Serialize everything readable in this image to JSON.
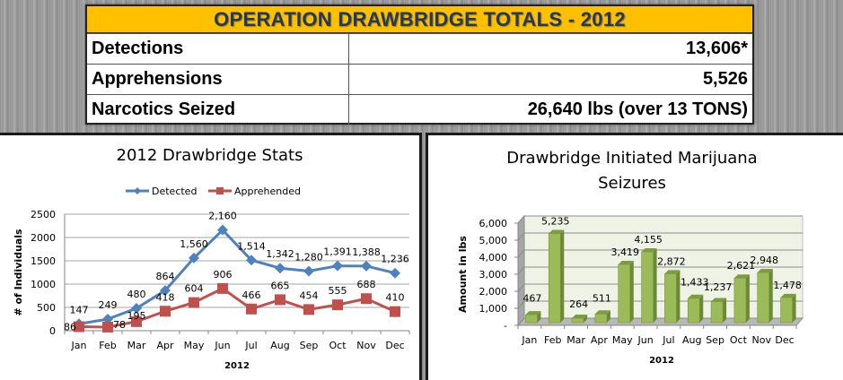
{
  "totals": {
    "title": "OPERATION DRAWBRIDGE TOTALS - 2012",
    "rows": [
      {
        "label": "Detections",
        "value": "13,606*"
      },
      {
        "label": "Apprehensions",
        "value": "5,526"
      },
      {
        "label": "Narcotics Seized",
        "value": "26,640 lbs (over 13 TONS)"
      }
    ]
  },
  "chart_data": [
    {
      "type": "line",
      "title": "2012 Drawbridge Stats",
      "xlabel": "2012",
      "ylabel": "# of Individuals",
      "categories": [
        "Jan",
        "Feb",
        "Mar",
        "Apr",
        "May",
        "Jun",
        "Jul",
        "Aug",
        "Sep",
        "Oct",
        "Nov",
        "Dec"
      ],
      "ylim": [
        0,
        2500
      ],
      "yticks": [
        "0",
        "500",
        "1000",
        "1500",
        "2000",
        "2500"
      ],
      "grid": true,
      "legend": "top",
      "series": [
        {
          "name": "Detected",
          "color": "#4f81bd",
          "marker": "diamond",
          "values": [
            147,
            249,
            480,
            864,
            1560,
            2160,
            1514,
            1342,
            1280,
            1391,
            1388,
            1236
          ],
          "labels": [
            "147",
            "249",
            "480",
            "864",
            "1,560",
            "2,160",
            "1,514",
            "1,342",
            "1,280",
            "1,391",
            "1,388",
            "1,236"
          ]
        },
        {
          "name": "Apprehended",
          "color": "#c0504d",
          "marker": "square",
          "values": [
            86,
            78,
            195,
            418,
            604,
            906,
            466,
            665,
            454,
            555,
            688,
            410
          ],
          "labels": [
            "86",
            "78",
            "195",
            "418",
            "604",
            "906",
            "466",
            "665",
            "454",
            "555",
            "688",
            "410"
          ]
        }
      ]
    },
    {
      "type": "bar",
      "title": "Drawbridge Initiated Marijuana Seizures",
      "xlabel": "2012",
      "ylabel": "Amount in lbs",
      "categories": [
        "Jan",
        "Feb",
        "Mar",
        "Apr",
        "May",
        "Jun",
        "Jul",
        "Aug",
        "Sep",
        "Oct",
        "Nov",
        "Dec"
      ],
      "values": [
        467,
        5235,
        264,
        511,
        3419,
        4155,
        2872,
        1433,
        1237,
        2621,
        2948,
        1478
      ],
      "labels": [
        "467",
        "5,235",
        "264",
        "511",
        "3,419",
        "4,155",
        "2,872",
        "1,433",
        "1,237",
        "2,621",
        "2,948",
        "1,478"
      ],
      "ylim": [
        0,
        6000
      ],
      "yticks": [
        "-",
        "1,000",
        "2,000",
        "3,000",
        "4,000",
        "5,000",
        "6,000"
      ],
      "grid": true,
      "style": "3d",
      "bar_color": "#9bbb59"
    }
  ]
}
